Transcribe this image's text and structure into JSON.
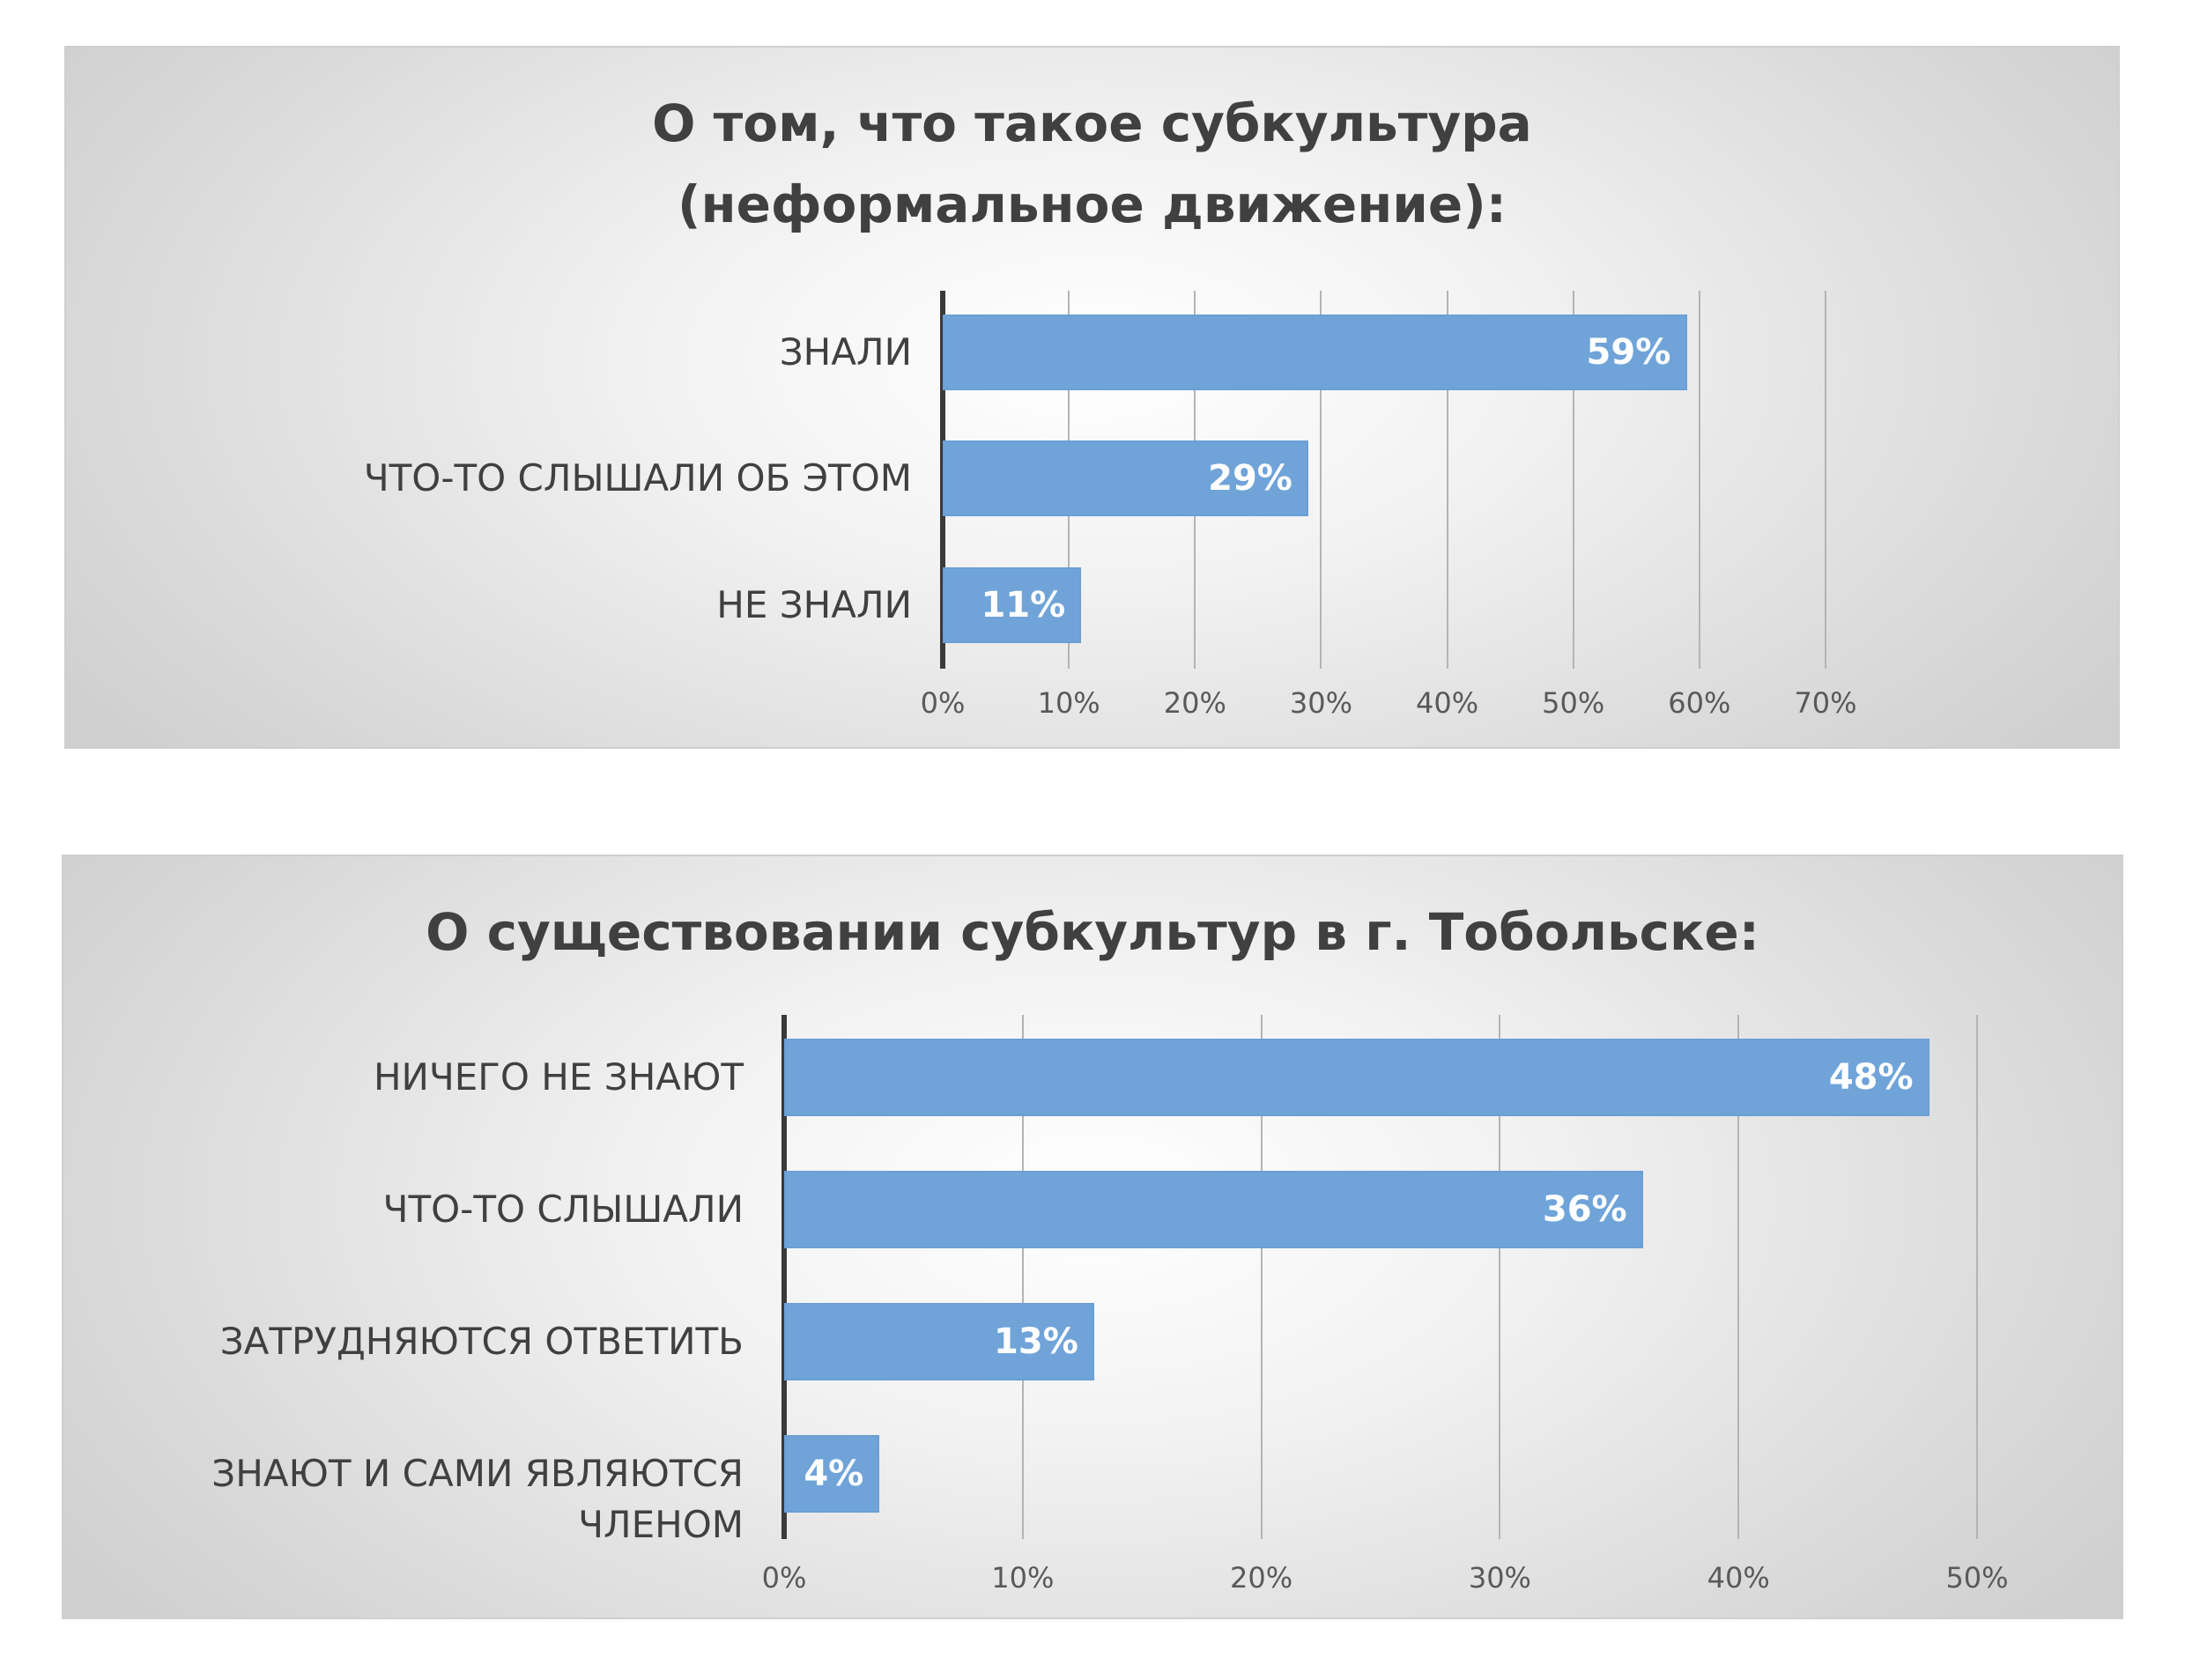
{
  "chart_data": [
    {
      "type": "bar",
      "orientation": "horizontal",
      "title": "О том, что такое субкультура\n(неформальное движение):",
      "categories": [
        "ЗНАЛИ",
        "ЧТО-ТО СЛЫШАЛИ ОБ ЭТОМ",
        "НЕ ЗНАЛИ"
      ],
      "values": [
        59,
        29,
        11
      ],
      "data_labels": [
        "59%",
        "29%",
        "11%"
      ],
      "xlim": [
        0,
        70
      ],
      "ticks": [
        0,
        10,
        20,
        30,
        40,
        50,
        60,
        70
      ],
      "tick_labels": [
        "0%",
        "10%",
        "20%",
        "30%",
        "40%",
        "50%",
        "60%",
        "70%"
      ],
      "grid": true,
      "bar_color": "#70a4d9"
    },
    {
      "type": "bar",
      "orientation": "horizontal",
      "title": "О существовании субкультур в г. Тобольске:",
      "categories": [
        "НИЧЕГО НЕ ЗНАЮТ",
        "ЧТО-ТО СЛЫШАЛИ",
        "ЗАТРУДНЯЮТСЯ ОТВЕТИТЬ",
        "ЗНАЮТ И САМИ ЯВЛЯЮТСЯ\nЧЛЕНОМ"
      ],
      "values": [
        48,
        36,
        13,
        4
      ],
      "data_labels": [
        "48%",
        "36%",
        "13%",
        "4%"
      ],
      "xlim": [
        0,
        50
      ],
      "ticks": [
        0,
        10,
        20,
        30,
        40,
        50
      ],
      "tick_labels": [
        "0%",
        "10%",
        "20%",
        "30%",
        "40%",
        "50%"
      ],
      "grid": true,
      "bar_color": "#70a4d9"
    }
  ]
}
